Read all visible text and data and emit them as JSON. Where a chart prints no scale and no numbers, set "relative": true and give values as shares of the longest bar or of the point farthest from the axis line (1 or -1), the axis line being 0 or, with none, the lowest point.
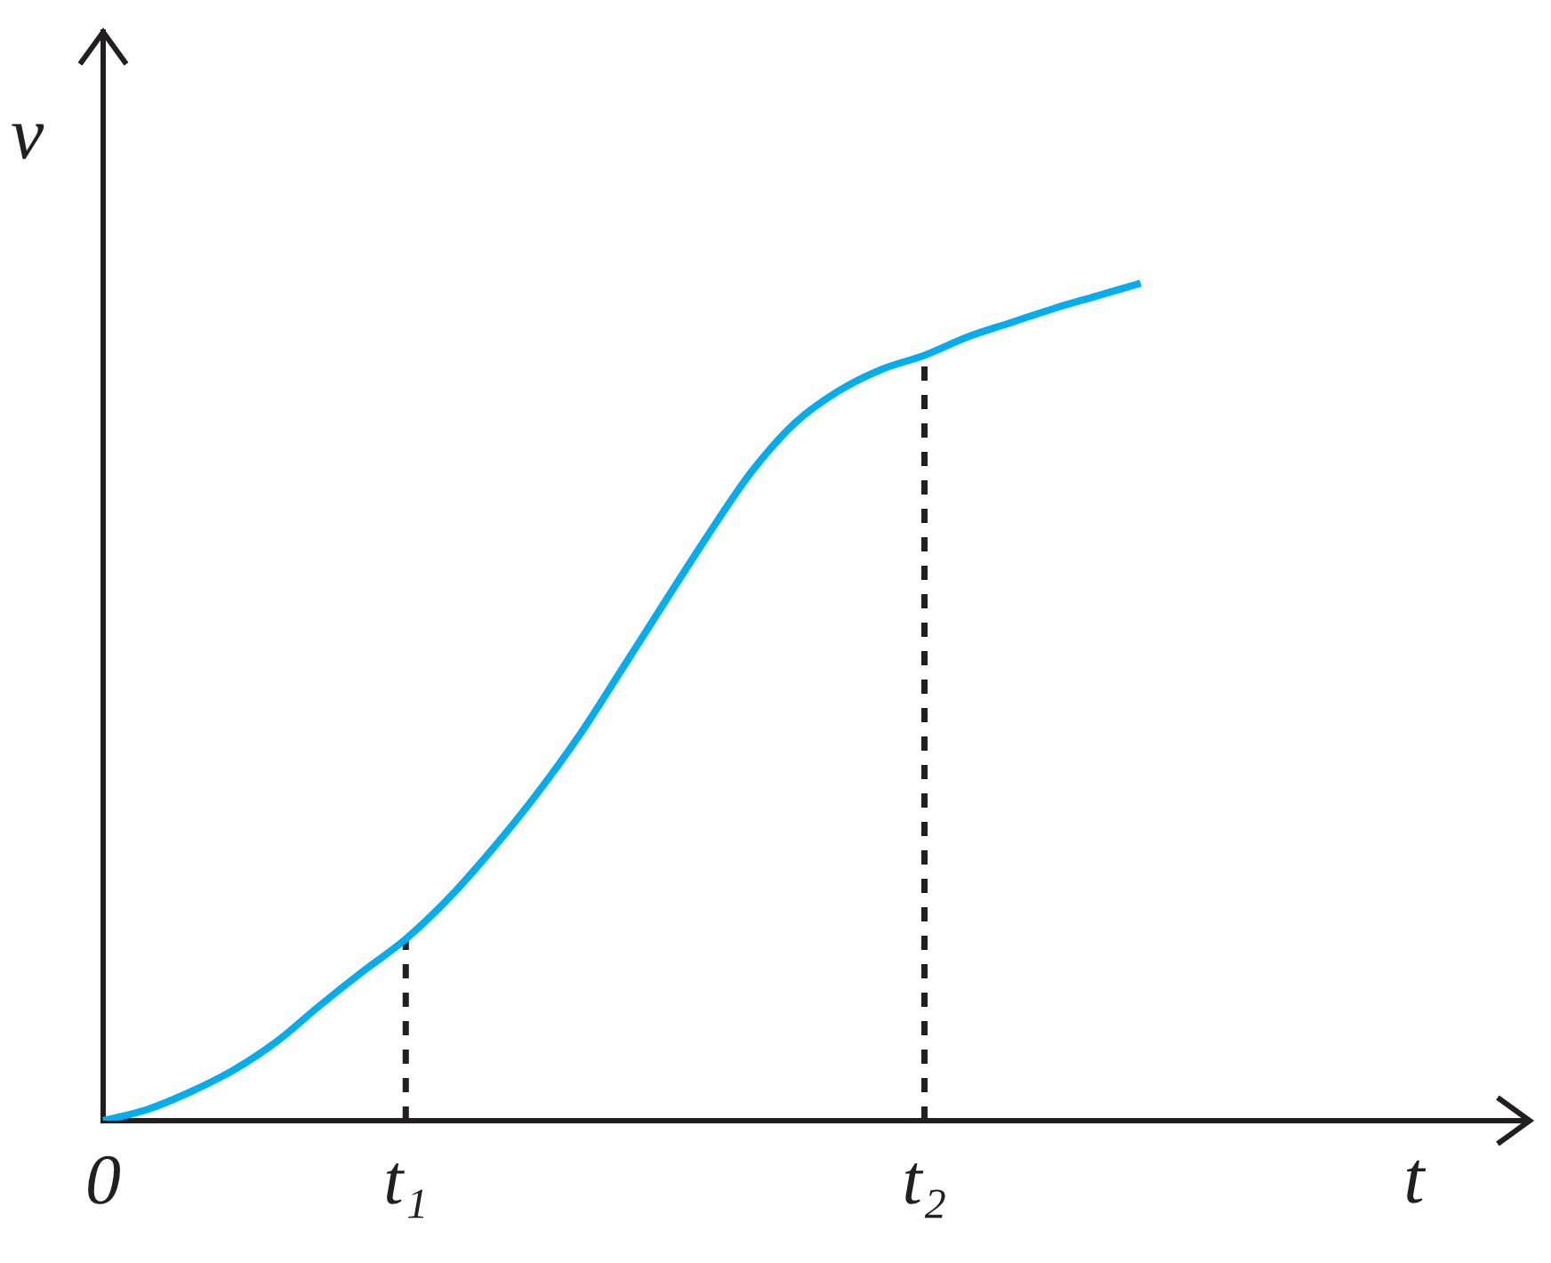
{
  "chart_data": {
    "type": "line",
    "relative": true,
    "xlabel": "t",
    "ylabel": "v",
    "categories": [
      "0",
      null,
      null,
      null,
      null,
      null,
      null,
      "t₁",
      null,
      null,
      null,
      null,
      null,
      null,
      null,
      null,
      null,
      null,
      null,
      "t₂",
      null,
      null,
      null,
      null,
      null,
      null,
      null,
      null,
      null,
      null,
      null,
      null,
      null,
      null
    ],
    "series": [
      {
        "color": "#00aeef",
        "values": [
          0,
          0.013,
          0.034,
          0.06,
          0.094,
          0.137,
          0.178,
          0.217,
          0.266,
          0.324,
          0.388,
          0.459,
          0.539,
          0.62,
          0.7,
          0.775,
          0.833,
          0.871,
          0.897,
          0.914,
          0.936,
          0.953,
          0.97,
          0.985,
          1,
          null,
          null,
          null,
          null,
          null,
          null,
          null,
          null,
          null
        ]
      }
    ],
    "ref_lines": [
      {
        "axis": "x",
        "value": "t₁",
        "line_style": "dashed",
        "color": "#231f20"
      },
      {
        "axis": "x",
        "value": "t₂",
        "line_style": "dashed",
        "color": "#231f20"
      }
    ],
    "grid": false,
    "legend": false,
    "marker": "none"
  }
}
